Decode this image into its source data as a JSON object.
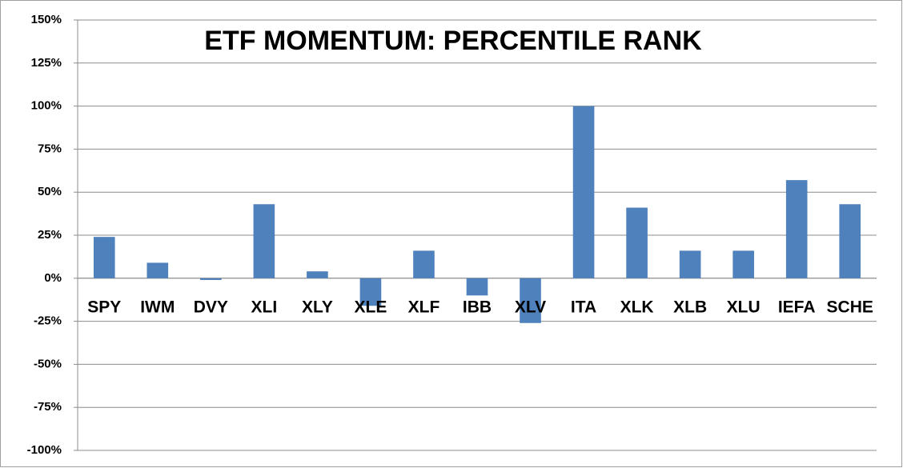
{
  "chart_data": {
    "type": "bar",
    "title": "ETF MOMENTUM: PERCENTILE RANK",
    "categories": [
      "SPY",
      "IWM",
      "DVY",
      "XLI",
      "XLY",
      "XLE",
      "XLF",
      "IBB",
      "XLV",
      "ITA",
      "XLK",
      "XLB",
      "XLU",
      "IEFA",
      "SCHE"
    ],
    "values": [
      24,
      9,
      -1,
      43,
      4,
      -16,
      16,
      -10,
      -26,
      100,
      41,
      16,
      16,
      57,
      43
    ],
    "color": "#4f81bd",
    "ylim": [
      -100,
      150
    ],
    "yticks": [
      {
        "value": -100,
        "label": "-100%"
      },
      {
        "value": -75,
        "label": "-75%"
      },
      {
        "value": -50,
        "label": "-50%"
      },
      {
        "value": -25,
        "label": "-25%"
      },
      {
        "value": 0,
        "label": "0%"
      },
      {
        "value": 25,
        "label": "25%"
      },
      {
        "value": 50,
        "label": "50%"
      },
      {
        "value": 75,
        "label": "75%"
      },
      {
        "value": 100,
        "label": "100%"
      },
      {
        "value": 125,
        "label": "125%"
      },
      {
        "value": 150,
        "label": "150%"
      }
    ],
    "grid": true
  }
}
